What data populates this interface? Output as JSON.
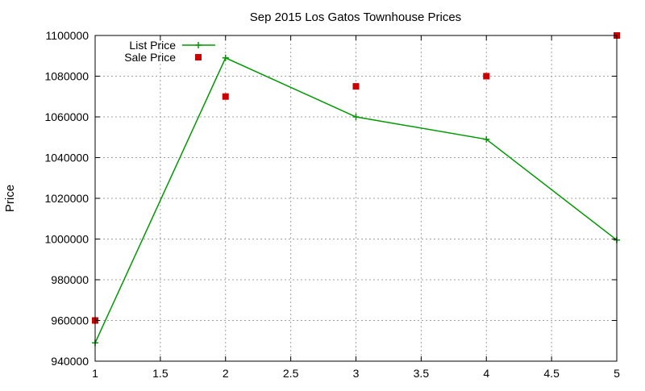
{
  "chart_data": {
    "type": "line",
    "title": "Sep 2015 Los Gatos Townhouse Prices",
    "xlabel": "",
    "ylabel": "Price",
    "xlim": [
      1,
      5
    ],
    "ylim": [
      940000,
      1100000
    ],
    "x_ticks": [
      "1",
      "1.5",
      "2",
      "2.5",
      "3",
      "3.5",
      "4",
      "4.5",
      "5"
    ],
    "y_ticks": [
      "940000",
      "960000",
      "980000",
      "1000000",
      "1020000",
      "1040000",
      "1060000",
      "1080000",
      "1100000"
    ],
    "grid": true,
    "legend_position": "top-left",
    "series": [
      {
        "name": "List Price",
        "style": "line-plus",
        "color": "#009900",
        "points": [
          [
            1,
            949000
          ],
          [
            2,
            1089000
          ],
          [
            3,
            1060000
          ],
          [
            4,
            1049000
          ],
          [
            5,
            999500
          ]
        ]
      },
      {
        "name": "Sale Price",
        "style": "square-points",
        "color": "#cc0000",
        "points": [
          [
            1,
            960000
          ],
          [
            2,
            1070000
          ],
          [
            3,
            1075000
          ],
          [
            4,
            1080000
          ],
          [
            5,
            1100000
          ]
        ]
      }
    ]
  }
}
